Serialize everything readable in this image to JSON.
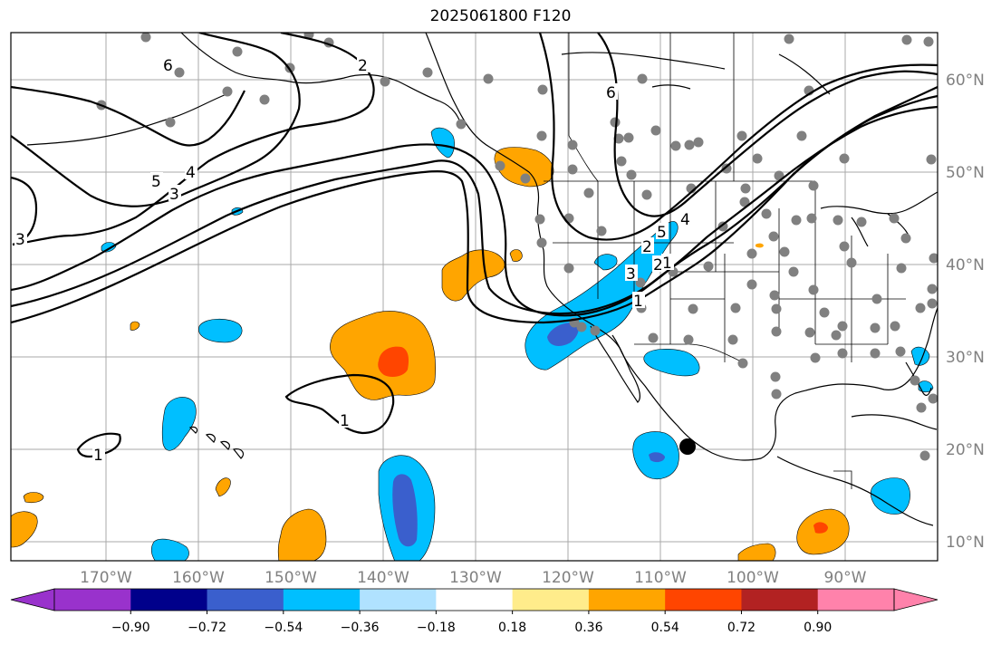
{
  "title": "2025061800 F120",
  "map": {
    "lon_range": [
      -180,
      -80
    ],
    "lat_range": [
      8,
      65
    ],
    "lon_ticks": [
      "170°W",
      "160°W",
      "150°W",
      "140°W",
      "130°W",
      "120°W",
      "110°W",
      "100°W",
      "90°W"
    ],
    "lat_ticks": [
      "60°N",
      "50°N",
      "40°N",
      "30°N",
      "20°N",
      "10°N"
    ],
    "grid": true,
    "contour_labels": [
      "6",
      "2",
      "5",
      "4",
      "3",
      "3",
      "6",
      "5",
      "4",
      "2",
      "1",
      "1",
      "1",
      "1",
      "3",
      "2"
    ]
  },
  "colorbar": {
    "colors": [
      "#9932cc",
      "#00008b",
      "#3a5fcd",
      "#00bfff",
      "#b0e2ff",
      "#ffffff",
      "#ffec8b",
      "#ffa500",
      "#ff4500",
      "#b22222",
      "#ff82ab"
    ],
    "tick_labels": [
      "−0.90",
      "−0.72",
      "−0.54",
      "−0.36",
      "−0.18",
      "0.18",
      "0.36",
      "0.54",
      "0.72",
      "0.90"
    ]
  }
}
